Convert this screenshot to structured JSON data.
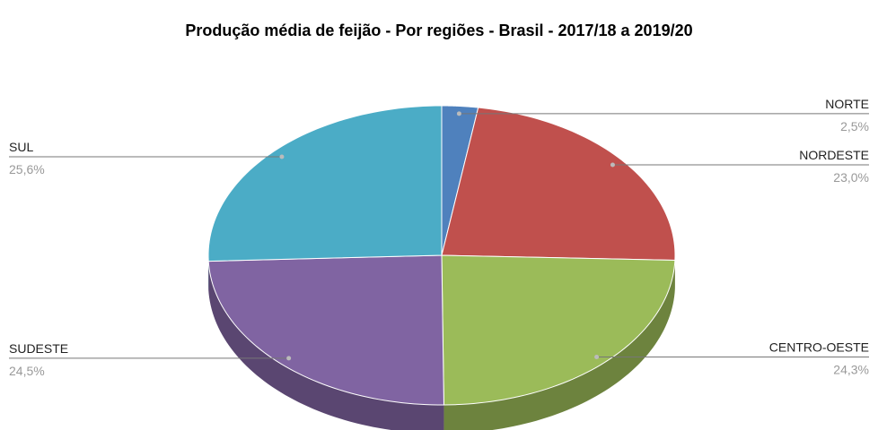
{
  "chart_data": {
    "type": "pie",
    "title": "Produção média de feijão - Por regiões - Brasil - 2017/18 a 2019/20",
    "categories": [
      "NORTE",
      "NORDESTE",
      "CENTRO-OESTE",
      "SUDESTE",
      "SUL"
    ],
    "values": [
      2.5,
      23.0,
      24.3,
      24.5,
      25.6
    ],
    "value_labels": [
      "2,5%",
      "23,0%",
      "24,3%",
      "24,5%",
      "25,6%"
    ],
    "colors": [
      "#4f81bd",
      "#c0504d",
      "#9bbb59",
      "#8064a2",
      "#4bacc6"
    ]
  }
}
